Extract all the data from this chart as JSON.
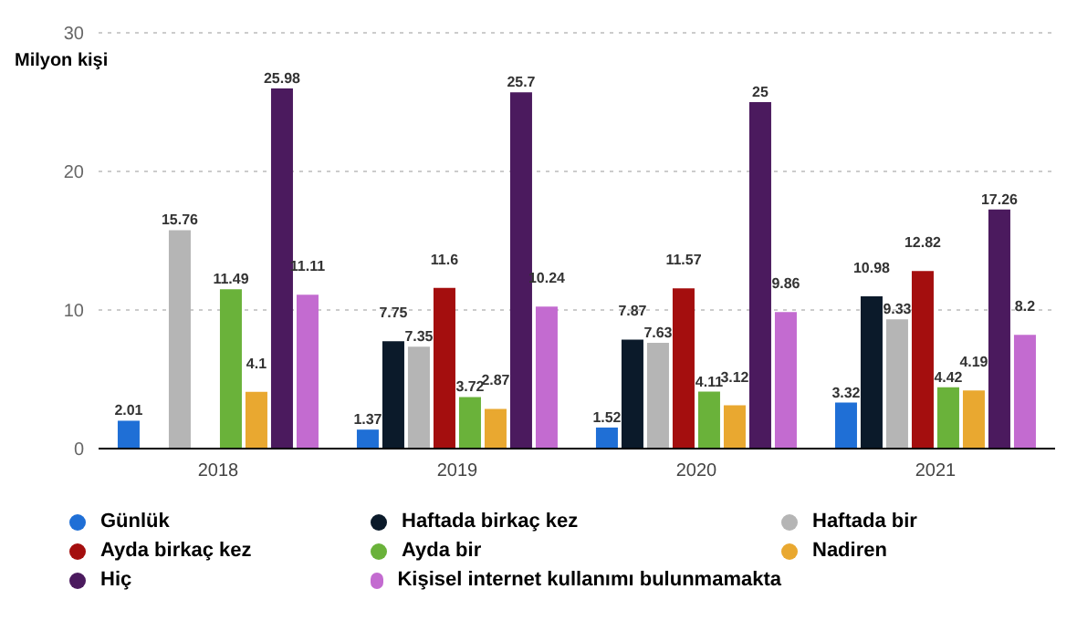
{
  "chart_data": {
    "type": "bar",
    "ylabel": "Milyon kişi",
    "categories": [
      "2018",
      "2019",
      "2020",
      "2021"
    ],
    "series": [
      {
        "name": "Günlük",
        "color": "#1f6fd6",
        "values": [
          2.01,
          1.37,
          1.52,
          3.32
        ]
      },
      {
        "name": "Haftada birkaç kez",
        "color": "#0b1a2a",
        "values": [
          null,
          7.75,
          7.87,
          10.98
        ]
      },
      {
        "name": "Haftada bir",
        "color": "#b5b5b5",
        "values": [
          15.76,
          7.35,
          7.63,
          9.33
        ]
      },
      {
        "name": "Ayda birkaç kez",
        "color": "#a40e0e",
        "values": [
          null,
          11.6,
          11.57,
          12.82
        ]
      },
      {
        "name": "Ayda bir",
        "color": "#6ab23a",
        "values": [
          11.49,
          3.72,
          4.11,
          4.42
        ]
      },
      {
        "name": "Nadiren",
        "color": "#e9a830",
        "values": [
          4.1,
          2.87,
          3.12,
          4.19
        ]
      },
      {
        "name": "Hiç",
        "color": "#4b1a5e",
        "values": [
          25.98,
          25.7,
          25,
          17.26
        ]
      },
      {
        "name": "Kişisel internet kullanımı bulunmamakta",
        "color": "#c36bd0",
        "values": [
          11.11,
          10.24,
          9.86,
          8.2
        ]
      }
    ],
    "ylim": [
      0,
      30
    ],
    "yticks": [
      0,
      10,
      20,
      30
    ],
    "grid": "y",
    "data_labels": true,
    "legend": "bottom"
  }
}
